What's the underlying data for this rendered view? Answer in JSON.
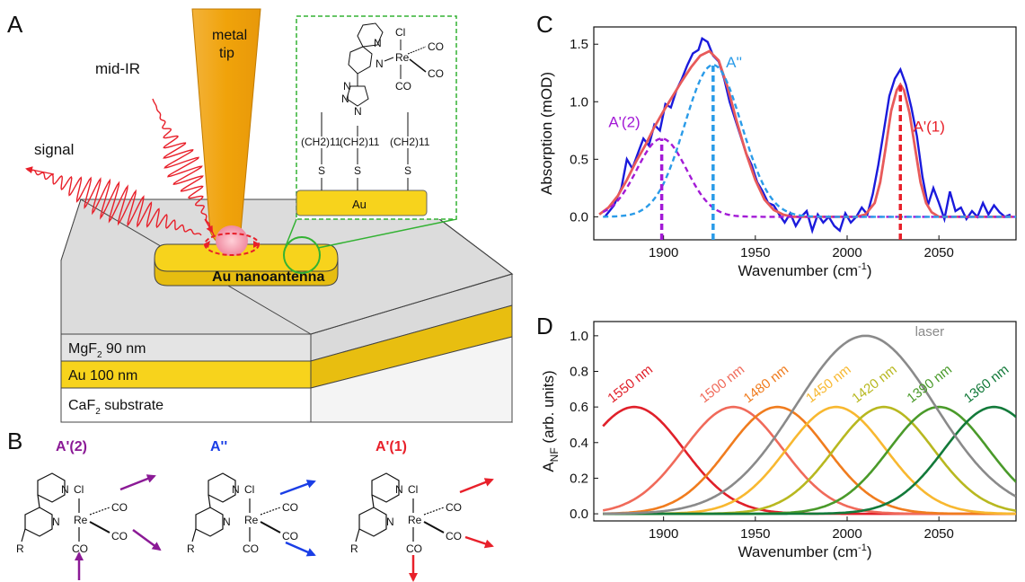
{
  "panels": {
    "A": {
      "letter": "A",
      "metal_tip": [
        "metal",
        "tip"
      ],
      "mid_ir": "mid-IR",
      "signal": "signal",
      "nanoantenna": "Au nanoantenna",
      "inset_au": "Au",
      "layers": [
        {
          "name": "MgF",
          "sub": "2",
          "rest": " 90 nm",
          "color": "#e4e4e4"
        },
        {
          "name": "Au 100 nm",
          "sub": "",
          "rest": "",
          "color": "#f7d31c"
        },
        {
          "name": "CaF",
          "sub": "2",
          "rest": " substrate",
          "color": "#ffffff"
        }
      ],
      "chain_label": "(CH2)11",
      "sulfur": "S",
      "atoms": {
        "cl": "Cl",
        "re": "Re",
        "n": "N",
        "co": "CO"
      },
      "colors": {
        "gold": "#f7d31c",
        "tip": "#f0a30a",
        "inset_border": "#33b233",
        "ir": "#e8202a",
        "co_red": "#e8202a"
      }
    },
    "B": {
      "letter": "B",
      "modes": [
        {
          "label": "A'(2)",
          "color": "#8b1a96"
        },
        {
          "label": "A''",
          "color": "#1a3ee6"
        },
        {
          "label": "A'(1)",
          "color": "#e8202a"
        }
      ],
      "atoms": {
        "cl": "Cl",
        "re": "Re",
        "n": "N",
        "co": "CO",
        "r": "R"
      }
    },
    "C": {
      "letter": "C"
    },
    "D": {
      "letter": "D"
    }
  },
  "chart_data": [
    {
      "id": "C",
      "type": "line",
      "xlabel": "Wavenumber (cm-1)",
      "ylabel": "Absorption (mOD)",
      "xlim": [
        1862,
        2092
      ],
      "ylim": [
        -0.2,
        1.65
      ],
      "xticks": [
        1900,
        1950,
        2000,
        2050
      ],
      "yticks": [
        0.0,
        0.5,
        1.0,
        1.5
      ],
      "xtick_labels": [
        "1900",
        "1950",
        "2000",
        "2050"
      ],
      "ytick_labels": [
        "0.0",
        "0.5",
        "1.0",
        "1.5"
      ],
      "grid": false,
      "series": [
        {
          "key": "measured",
          "color": "#1a1adc",
          "style": "solid",
          "x": [
            1868,
            1873,
            1877,
            1880,
            1883,
            1886,
            1889,
            1892,
            1895,
            1898,
            1901,
            1904,
            1907,
            1910,
            1913,
            1916,
            1919,
            1921,
            1924,
            1927,
            1930,
            1933,
            1936,
            1939,
            1942,
            1945,
            1948,
            1951,
            1954,
            1957,
            1960,
            1963,
            1966,
            1969,
            1972,
            1975,
            1978,
            1981,
            1984,
            1987,
            1990,
            1993,
            1996,
            1999,
            2002,
            2005,
            2008,
            2011,
            2014,
            2017,
            2020,
            2023,
            2026,
            2029,
            2032,
            2035,
            2038,
            2041,
            2044,
            2047,
            2050,
            2053,
            2056,
            2059,
            2062,
            2065,
            2068,
            2071,
            2074,
            2077,
            2080,
            2083,
            2086,
            2089
          ],
          "y": [
            0.0,
            0.1,
            0.25,
            0.5,
            0.42,
            0.55,
            0.68,
            0.62,
            0.8,
            0.75,
            0.98,
            0.95,
            1.1,
            1.2,
            1.32,
            1.42,
            1.45,
            1.55,
            1.52,
            1.4,
            1.35,
            1.2,
            1.0,
            0.85,
            0.7,
            0.55,
            0.45,
            0.3,
            0.22,
            0.12,
            0.1,
            0.02,
            -0.05,
            0.03,
            -0.08,
            0.0,
            0.05,
            -0.12,
            0.02,
            -0.05,
            0.0,
            -0.08,
            -0.12,
            0.03,
            -0.05,
            0.0,
            0.08,
            0.02,
            0.2,
            0.45,
            0.75,
            1.05,
            1.2,
            1.28,
            1.15,
            0.95,
            0.7,
            0.35,
            0.1,
            0.25,
            0.12,
            -0.02,
            0.22,
            0.05,
            0.08,
            -0.02,
            0.05,
            0.0,
            0.12,
            0.02,
            0.1,
            0.04,
            0.0,
            0.02
          ]
        },
        {
          "key": "fit",
          "color": "#e85a5a",
          "style": "solid",
          "x": [
            1865,
            1870,
            1875,
            1880,
            1885,
            1890,
            1895,
            1900,
            1905,
            1910,
            1915,
            1920,
            1925,
            1930,
            1935,
            1940,
            1945,
            1950,
            1955,
            1960,
            1965,
            1970,
            1980,
            1990,
            2000,
            2005,
            2010,
            2015,
            2018,
            2021,
            2024,
            2027,
            2029,
            2031,
            2034,
            2037,
            2040,
            2043,
            2046,
            2050,
            2060,
            2070,
            2080,
            2090
          ],
          "y": [
            0.02,
            0.08,
            0.18,
            0.32,
            0.48,
            0.62,
            0.78,
            0.92,
            1.05,
            1.18,
            1.3,
            1.4,
            1.44,
            1.36,
            1.12,
            0.82,
            0.55,
            0.32,
            0.15,
            0.06,
            0.02,
            0.0,
            0.0,
            0.0,
            0.0,
            0.0,
            0.02,
            0.12,
            0.3,
            0.6,
            0.92,
            1.1,
            1.15,
            1.1,
            0.9,
            0.6,
            0.3,
            0.12,
            0.04,
            0.0,
            0.0,
            0.0,
            0.0,
            0.0
          ]
        },
        {
          "key": "A'(2) component",
          "color": "#a31ad6",
          "style": "dashed",
          "gauss": {
            "center": 1899,
            "amp": 0.68,
            "sigma": 13.5
          }
        },
        {
          "key": "A'' component",
          "color": "#2a9be8",
          "style": "dashed",
          "gauss": {
            "center": 1927,
            "amp": 1.32,
            "sigma": 15.5
          }
        }
      ],
      "drop_lines": [
        {
          "x": 1899,
          "y": 0.68,
          "color": "#a31ad6"
        },
        {
          "x": 1927,
          "y": 1.32,
          "color": "#2a9be8"
        },
        {
          "x": 2029,
          "y": 1.15,
          "color": "#e8202a"
        }
      ],
      "annotations": [
        {
          "text": "A'(2)",
          "color": "#a31ad6",
          "at": [
            1870,
            0.78
          ]
        },
        {
          "text": "A''",
          "color": "#2a9be8",
          "at": [
            1934,
            1.3
          ]
        },
        {
          "text": "A'(1)",
          "color": "#e8202a",
          "at": [
            2036,
            0.74
          ]
        }
      ]
    },
    {
      "id": "D",
      "type": "line",
      "xlabel": "Wavenumber (cm-1)",
      "ylabel": "ANF (arb. units)",
      "xlim": [
        1862,
        2092
      ],
      "ylim": [
        -0.04,
        1.08
      ],
      "xticks": [
        1900,
        1950,
        2000,
        2050
      ],
      "yticks": [
        0.0,
        0.2,
        0.4,
        0.6,
        0.8,
        1.0
      ],
      "xtick_labels": [
        "1900",
        "1950",
        "2000",
        "2050"
      ],
      "ytick_labels": [
        "0.0",
        "0.2",
        "0.4",
        "0.6",
        "0.8",
        "1.0"
      ],
      "grid": false,
      "series": [
        {
          "name": "1550 nm",
          "color": "#e0202a",
          "center": 1884,
          "amp": 0.6,
          "sigma": 27
        },
        {
          "name": "1500 nm",
          "color": "#f06a5a",
          "center": 1938,
          "amp": 0.6,
          "sigma": 27
        },
        {
          "name": "1480 nm",
          "color": "#f07c1e",
          "center": 1962,
          "amp": 0.6,
          "sigma": 27
        },
        {
          "name": "1450 nm",
          "color": "#f8b830",
          "center": 1994,
          "amp": 0.6,
          "sigma": 27
        },
        {
          "name": "1420 nm",
          "color": "#b8b820",
          "center": 2020,
          "amp": 0.6,
          "sigma": 27
        },
        {
          "name": "1390 nm",
          "color": "#4a9a2a",
          "center": 2050,
          "amp": 0.6,
          "sigma": 27
        },
        {
          "name": "1360 nm",
          "color": "#137a3a",
          "center": 2080,
          "amp": 0.6,
          "sigma": 27
        },
        {
          "name": "laser",
          "color": "#8a8a8a",
          "center": 2010,
          "amp": 1.0,
          "sigma": 38
        }
      ],
      "label_positions": [
        {
          "x": 1872,
          "y": 0.62,
          "rotate": -38
        },
        {
          "x": 1922,
          "y": 0.62,
          "rotate": -38
        },
        {
          "x": 1946,
          "y": 0.62,
          "rotate": -38
        },
        {
          "x": 1980,
          "y": 0.62,
          "rotate": -38
        },
        {
          "x": 2005,
          "y": 0.62,
          "rotate": -38
        },
        {
          "x": 2035,
          "y": 0.62,
          "rotate": -38
        },
        {
          "x": 2066,
          "y": 0.62,
          "rotate": -38
        },
        {
          "x": 2037,
          "y": 1.0,
          "rotate": 0
        }
      ]
    }
  ]
}
